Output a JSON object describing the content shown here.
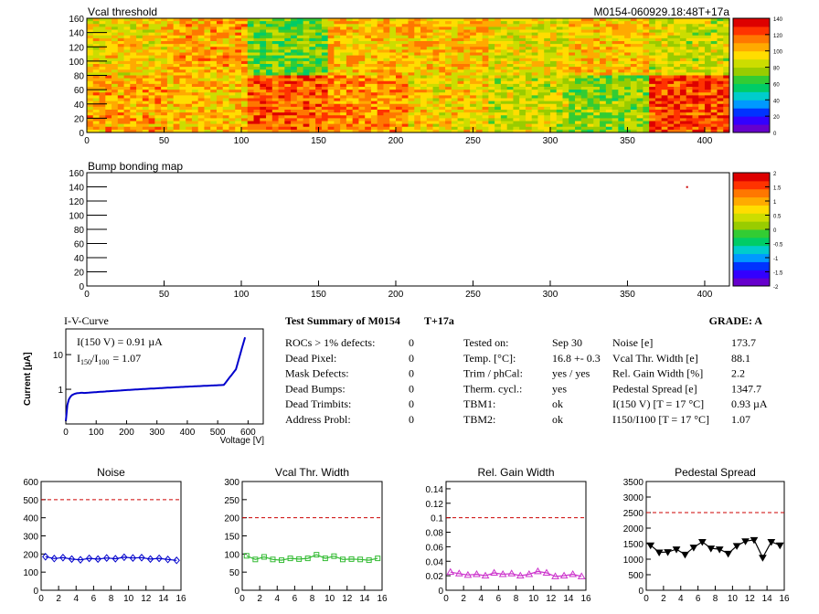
{
  "vcal_map": {
    "title": "Vcal threshold",
    "module_label": "M0154-060929.18:48T+17a",
    "xticks": [
      "0",
      "50",
      "100",
      "150",
      "200",
      "250",
      "300",
      "350",
      "400"
    ],
    "yticks": [
      "0",
      "20",
      "40",
      "60",
      "80",
      "100",
      "120",
      "140",
      "160"
    ],
    "palette_ticks": [
      "0",
      "20",
      "40",
      "60",
      "80",
      "100",
      "120",
      "140"
    ],
    "roc_levels_top": [
      95,
      105,
      70,
      100,
      100,
      90,
      100,
      85
    ],
    "roc_levels_bottom": [
      105,
      100,
      118,
      110,
      95,
      85,
      75,
      123
    ]
  },
  "bump_map": {
    "title": "Bump bonding map",
    "xticks": [
      "0",
      "50",
      "100",
      "150",
      "200",
      "250",
      "300",
      "350",
      "400"
    ],
    "yticks": [
      "0",
      "20",
      "40",
      "60",
      "80",
      "100",
      "120",
      "140",
      "160"
    ],
    "palette_ticks": [
      "-2",
      "-1.5",
      "-1",
      "-0.5",
      "0",
      "0.5",
      "1",
      "1.5",
      "2"
    ],
    "hot_pixel": {
      "x": 388,
      "y": 141
    }
  },
  "iv_curve": {
    "title": "I-V-Curve",
    "ylabel": "Current [µA]",
    "xlabel": "Voltage [V]",
    "xticks": [
      "0",
      "100",
      "200",
      "300",
      "400",
      "500",
      "600"
    ],
    "yticks": [
      "1",
      "10"
    ],
    "annot1": "I(150 V) = 0.91 µA",
    "annot2": "I",
    "annot2_sub1": "150",
    "annot2_mid": "/I",
    "annot2_sub2": "100",
    "annot2_val": "=  1.07"
  },
  "summary": {
    "title": "Test Summary of M0154",
    "temp_tag": "T+17a",
    "grade": "GRADE:  A",
    "col1": [
      {
        "label": "ROCs > 1% defects:",
        "value": "0"
      },
      {
        "label": "Dead Pixel:",
        "value": "0"
      },
      {
        "label": "Mask Defects:",
        "value": "0"
      },
      {
        "label": "Dead Bumps:",
        "value": "0"
      },
      {
        "label": "Dead Trimbits:",
        "value": "0"
      },
      {
        "label": "Address Probl:",
        "value": "0"
      }
    ],
    "col2": [
      {
        "label": "Tested on:",
        "value": "Sep 30"
      },
      {
        "label": "Temp. [°C]:",
        "value": "16.8 +- 0.3"
      },
      {
        "label": "Trim / phCal:",
        "value": "yes / yes"
      },
      {
        "label": "Therm. cycl.:",
        "value": "yes"
      },
      {
        "label": "TBM1:",
        "value": "ok"
      },
      {
        "label": "TBM2:",
        "value": "ok"
      }
    ],
    "col3": [
      {
        "label": "Noise [e]",
        "value": "173.7"
      },
      {
        "label": "Vcal Thr. Width [e]",
        "value": "88.1"
      },
      {
        "label": "Rel. Gain Width [%]",
        "value": "2.2"
      },
      {
        "label": "Pedestal Spread [e]",
        "value": "1347.7"
      },
      {
        "label": "I(150 V) [T = 17 °C]",
        "value": "0.93 µA"
      },
      {
        "label": "I150/I100  [T = 17 °C]",
        "value": "1.07"
      }
    ]
  },
  "chart_data": [
    {
      "type": "line",
      "title": "Noise",
      "x": [
        0,
        1,
        2,
        3,
        4,
        5,
        6,
        7,
        8,
        9,
        10,
        11,
        12,
        13,
        14,
        15
      ],
      "values": [
        185,
        175,
        180,
        172,
        168,
        176,
        172,
        178,
        174,
        182,
        178,
        180,
        172,
        176,
        170,
        165
      ],
      "ylim": [
        0,
        600
      ],
      "threshold": 500,
      "yticks": [
        "0",
        "100",
        "200",
        "300",
        "400",
        "500",
        "600"
      ],
      "xticks": [
        "0",
        "2",
        "4",
        "6",
        "8",
        "10",
        "12",
        "14",
        "16"
      ],
      "color": "#0000cc",
      "marker": "diamond"
    },
    {
      "type": "line",
      "title": "Vcal Thr. Width",
      "x": [
        0,
        1,
        2,
        3,
        4,
        5,
        6,
        7,
        8,
        9,
        10,
        11,
        12,
        13,
        14,
        15
      ],
      "values": [
        95,
        85,
        92,
        85,
        83,
        88,
        86,
        88,
        98,
        88,
        94,
        85,
        86,
        85,
        83,
        88
      ],
      "ylim": [
        0,
        300
      ],
      "threshold": 200,
      "yticks": [
        "0",
        "50",
        "100",
        "150",
        "200",
        "250",
        "300"
      ],
      "xticks": [
        "0",
        "2",
        "4",
        "6",
        "8",
        "10",
        "12",
        "14",
        "16"
      ],
      "color": "#33bb33",
      "marker": "square"
    },
    {
      "type": "line",
      "title": "Rel. Gain Width",
      "x": [
        0,
        1,
        2,
        3,
        4,
        5,
        6,
        7,
        8,
        9,
        10,
        11,
        12,
        13,
        14,
        15
      ],
      "values": [
        0.025,
        0.023,
        0.021,
        0.022,
        0.02,
        0.024,
        0.022,
        0.023,
        0.02,
        0.022,
        0.026,
        0.024,
        0.019,
        0.02,
        0.022,
        0.019
      ],
      "ylim": [
        0,
        0.15
      ],
      "threshold": 0.1,
      "yticks": [
        "0",
        "0.02",
        "0.04",
        "0.06",
        "0.08",
        "0.1",
        "0.12",
        "0.14"
      ],
      "xticks": [
        "0",
        "2",
        "4",
        "6",
        "8",
        "10",
        "12",
        "14",
        "16"
      ],
      "color": "#cc33cc",
      "marker": "triangle"
    },
    {
      "type": "line",
      "title": "Pedestal Spread",
      "x": [
        0,
        1,
        2,
        3,
        4,
        5,
        6,
        7,
        8,
        9,
        10,
        11,
        12,
        13,
        14,
        15
      ],
      "values": [
        1450,
        1220,
        1230,
        1320,
        1150,
        1380,
        1560,
        1350,
        1320,
        1180,
        1430,
        1580,
        1620,
        1050,
        1560,
        1450
      ],
      "ylim": [
        0,
        3500
      ],
      "threshold": 2500,
      "yticks": [
        "0",
        "500",
        "1000",
        "1500",
        "2000",
        "2500",
        "3000",
        "3500"
      ],
      "xticks": [
        "0",
        "2",
        "4",
        "6",
        "8",
        "10",
        "12",
        "14",
        "16"
      ],
      "color": "#000000",
      "marker": "triangle-down"
    }
  ]
}
